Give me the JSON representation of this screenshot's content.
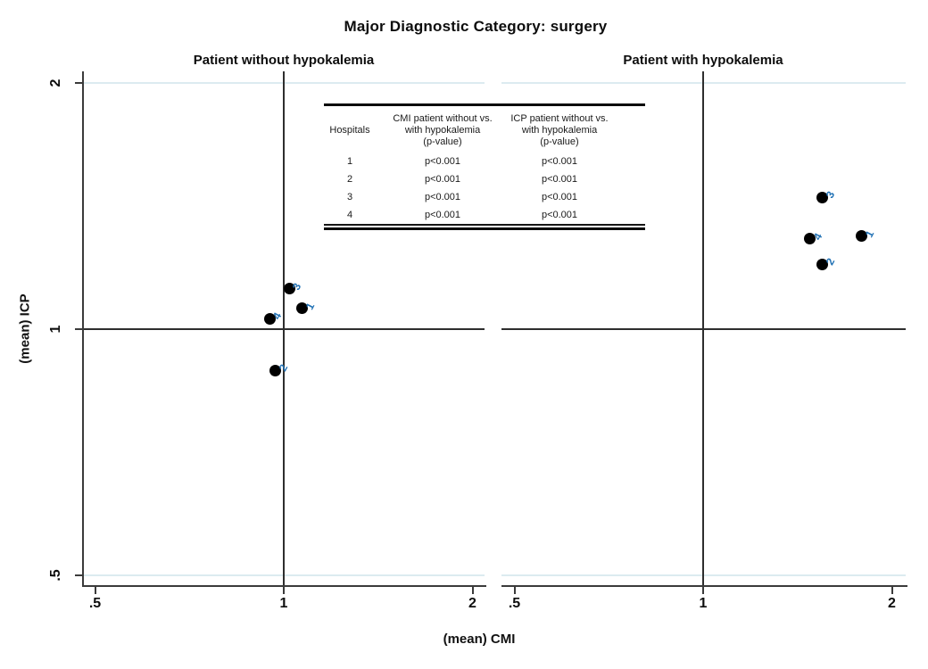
{
  "chart_data": {
    "type": "scatter",
    "title": "Major Diagnostic Category: surgery",
    "xlabel": "(mean) CMI",
    "ylabel": "(mean) ICP",
    "x_scale": "log",
    "y_scale": "log",
    "xlim": [
      0.48,
      2.1
    ],
    "ylim": [
      0.48,
      2.05
    ],
    "x_ticks": [
      {
        "label": ".5",
        "value": 0.5
      },
      {
        "label": "1",
        "value": 1
      },
      {
        "label": "2",
        "value": 2
      }
    ],
    "y_ticks": [
      {
        "label": ".5",
        "value": 0.5
      },
      {
        "label": "1",
        "value": 1
      },
      {
        "label": "2",
        "value": 2
      }
    ],
    "reference_lines": {
      "x_value": 1,
      "y_value": 1
    },
    "grid": true,
    "gridline_color": "#dcebf0",
    "marker_color": "#000000",
    "marker_label_color": "#2272b5",
    "panels": [
      {
        "title": "Patient without hypokalemia",
        "points": [
          {
            "label": "1",
            "x": 1.07,
            "y": 1.06
          },
          {
            "label": "2",
            "x": 0.97,
            "y": 0.89
          },
          {
            "label": "3",
            "x": 1.02,
            "y": 1.12
          },
          {
            "label": "4",
            "x": 0.95,
            "y": 1.03
          }
        ]
      },
      {
        "title": "Patient with hypokalemia",
        "points": [
          {
            "label": "1",
            "x": 1.79,
            "y": 1.3
          },
          {
            "label": "2",
            "x": 1.55,
            "y": 1.2
          },
          {
            "label": "3",
            "x": 1.55,
            "y": 1.45
          },
          {
            "label": "4",
            "x": 1.48,
            "y": 1.29
          }
        ]
      }
    ],
    "annotation_table": {
      "col_headers": [
        "Hospitals",
        "CMI patient without vs.\nwith hypokalemia\n(p-value)",
        "ICP patient without vs.\nwith hypokalemia\n(p-value)"
      ],
      "rows": [
        [
          "1",
          "p<0.001",
          "p<0.001"
        ],
        [
          "2",
          "p<0.001",
          "p<0.001"
        ],
        [
          "3",
          "p<0.001",
          "p<0.001"
        ],
        [
          "4",
          "p<0.001",
          "p<0.001"
        ]
      ]
    }
  }
}
